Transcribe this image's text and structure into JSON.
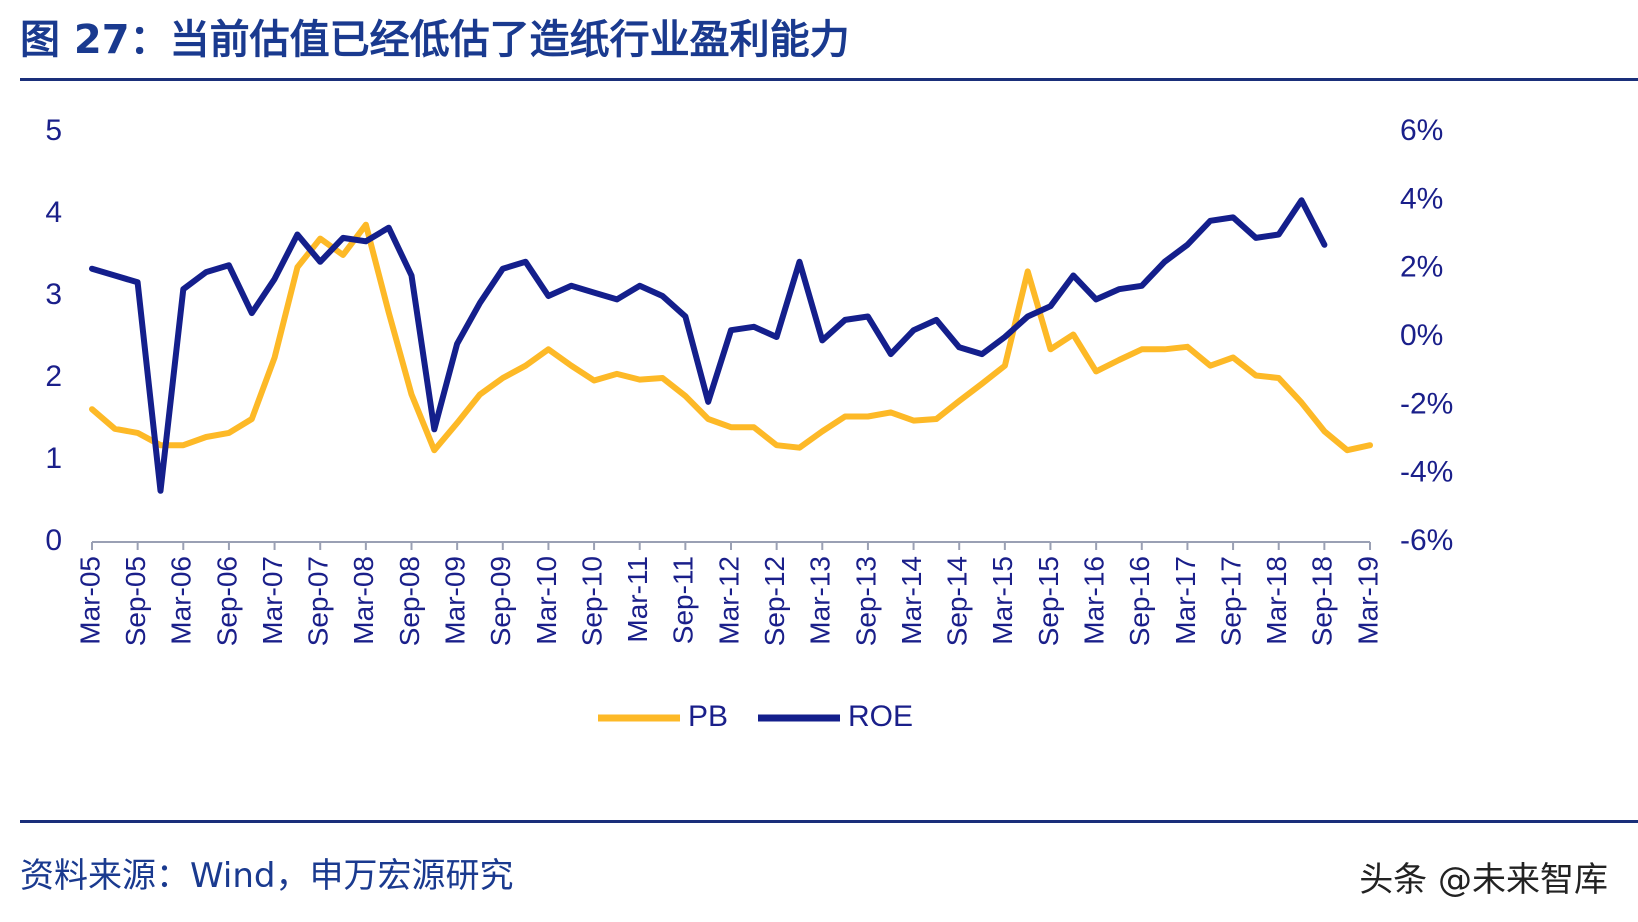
{
  "title": "图 27：当前估值已经低估了造纸行业盈利能力",
  "source": "资料来源：Wind，申万宏源研究",
  "watermark": "头条 @未来智库",
  "chart_data": {
    "type": "line",
    "x": [
      "Mar-05",
      "Jun-05",
      "Sep-05",
      "Dec-05",
      "Mar-06",
      "Jun-06",
      "Sep-06",
      "Dec-06",
      "Mar-07",
      "Jun-07",
      "Sep-07",
      "Dec-07",
      "Mar-08",
      "Jun-08",
      "Sep-08",
      "Dec-08",
      "Mar-09",
      "Jun-09",
      "Sep-09",
      "Dec-09",
      "Mar-10",
      "Jun-10",
      "Sep-10",
      "Dec-10",
      "Mar-11",
      "Jun-11",
      "Sep-11",
      "Dec-11",
      "Mar-12",
      "Jun-12",
      "Sep-12",
      "Dec-12",
      "Mar-13",
      "Jun-13",
      "Sep-13",
      "Dec-13",
      "Mar-14",
      "Jun-14",
      "Sep-14",
      "Dec-14",
      "Mar-15",
      "Jun-15",
      "Sep-15",
      "Dec-15",
      "Mar-16",
      "Jun-16",
      "Sep-16",
      "Dec-16",
      "Mar-17",
      "Jun-17",
      "Sep-17",
      "Dec-17",
      "Mar-18",
      "Jun-18",
      "Sep-18",
      "Dec-18",
      "Mar-19"
    ],
    "x_tick_labels": [
      "Mar-05",
      "Sep-05",
      "Mar-06",
      "Sep-06",
      "Mar-07",
      "Sep-07",
      "Mar-08",
      "Sep-08",
      "Mar-09",
      "Sep-09",
      "Mar-10",
      "Sep-10",
      "Mar-11",
      "Sep-11",
      "Mar-12",
      "Sep-12",
      "Mar-13",
      "Sep-13",
      "Mar-14",
      "Sep-14",
      "Mar-15",
      "Sep-15",
      "Mar-16",
      "Sep-16",
      "Mar-17",
      "Sep-17",
      "Mar-18",
      "Sep-18",
      "Mar-19"
    ],
    "series": [
      {
        "name": "PB",
        "axis": "left",
        "color": "#FDB927",
        "values": [
          1.62,
          1.38,
          1.33,
          1.18,
          1.18,
          1.28,
          1.33,
          1.5,
          2.25,
          3.35,
          3.7,
          3.5,
          3.87,
          2.8,
          1.8,
          1.12,
          1.45,
          1.8,
          2.0,
          2.15,
          2.35,
          2.15,
          1.97,
          2.05,
          1.98,
          2.0,
          1.78,
          1.5,
          1.4,
          1.4,
          1.18,
          1.15,
          1.35,
          1.53,
          1.53,
          1.58,
          1.48,
          1.5,
          1.72,
          1.93,
          2.15,
          3.3,
          2.35,
          2.53,
          2.08,
          2.22,
          2.35,
          2.35,
          2.38,
          2.15,
          2.25,
          2.03,
          2.0,
          1.7,
          1.35,
          1.12,
          1.18
        ]
      },
      {
        "name": "ROE",
        "axis": "right",
        "color": "#141F8C",
        "values": [
          2.0,
          1.8,
          1.6,
          -4.5,
          1.4,
          1.9,
          2.1,
          0.7,
          1.7,
          3.0,
          2.2,
          2.9,
          2.8,
          3.2,
          1.8,
          -2.7,
          -0.2,
          1.0,
          2.0,
          2.2,
          1.2,
          1.5,
          1.3,
          1.1,
          1.5,
          1.2,
          0.6,
          -1.9,
          0.2,
          0.3,
          0.0,
          2.2,
          -0.1,
          0.5,
          0.6,
          -0.5,
          0.2,
          0.5,
          -0.3,
          -0.5,
          0.0,
          0.6,
          0.9,
          1.8,
          1.1,
          1.4,
          1.5,
          2.2,
          2.7,
          3.4,
          3.5,
          2.9,
          3.0,
          4.0,
          2.7,
          null,
          null
        ]
      }
    ],
    "y_left": {
      "min": 0,
      "max": 5,
      "ticks": [
        0,
        1,
        2,
        3,
        4,
        5
      ],
      "tick_labels": [
        "0",
        "1",
        "2",
        "3",
        "4",
        "5"
      ]
    },
    "y_right": {
      "min": -6,
      "max": 6,
      "ticks": [
        -6,
        -4,
        -2,
        0,
        2,
        4,
        6
      ],
      "tick_labels": [
        "-6%",
        "-4%",
        "-2%",
        "0%",
        "2%",
        "4%",
        "6%"
      ]
    },
    "legend": {
      "placement": "bottom-center",
      "entries": [
        "PB",
        "ROE"
      ]
    },
    "grid": false,
    "axis_color": "#9aa0b4",
    "text_color": "#1a1f8a"
  }
}
